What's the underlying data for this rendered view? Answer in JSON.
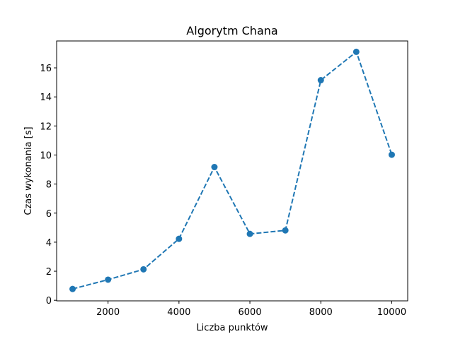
{
  "chart_data": {
    "type": "line",
    "title": "Algorytm Chana",
    "xlabel": "Liczba punktów",
    "ylabel": "Czas wykonania [s]",
    "x": [
      1000,
      2000,
      3000,
      4000,
      5000,
      6000,
      7000,
      8000,
      9000,
      10000
    ],
    "series": [
      {
        "values": [
          0.78,
          1.42,
          2.13,
          4.23,
          9.17,
          4.57,
          4.81,
          15.15,
          17.1,
          10.02
        ],
        "color": "#1f77b4",
        "line_style": "dashed",
        "marker": "circle"
      }
    ],
    "xlim": [
      550,
      10450
    ],
    "ylim": [
      -0.04,
      17.85
    ],
    "xticks": [
      2000,
      4000,
      6000,
      8000,
      10000
    ],
    "xtick_labels": [
      "2000",
      "4000",
      "6000",
      "8000",
      "10000"
    ],
    "yticks": [
      0,
      2,
      4,
      6,
      8,
      10,
      12,
      14,
      16
    ],
    "ytick_labels": [
      "0",
      "2",
      "4",
      "6",
      "8",
      "10",
      "12",
      "14",
      "16"
    ],
    "grid": false,
    "legend": false
  }
}
